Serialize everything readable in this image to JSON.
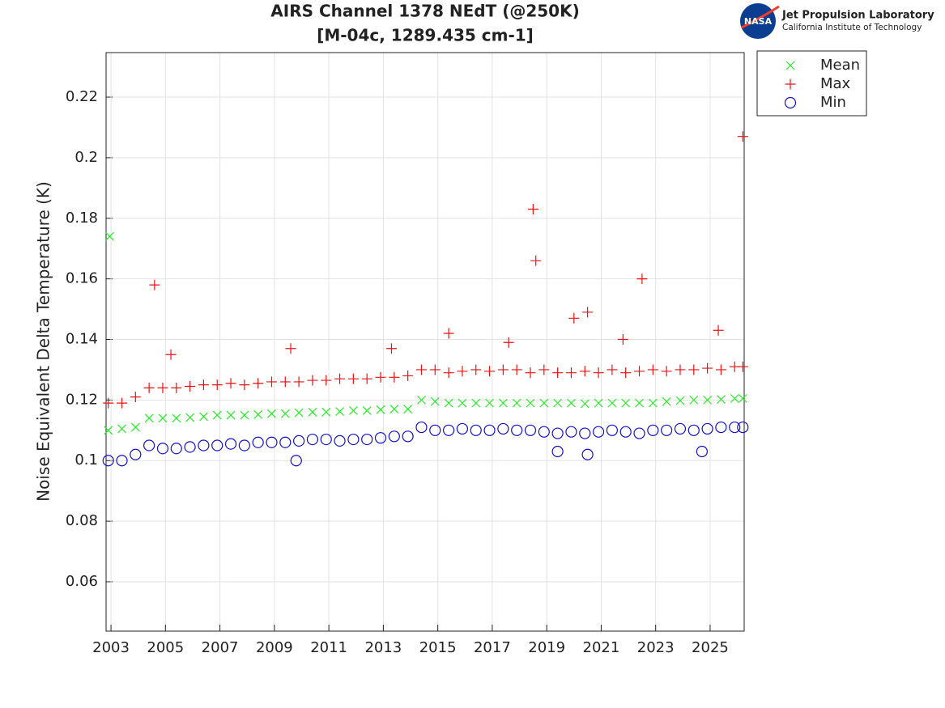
{
  "chart_data": {
    "type": "scatter",
    "title": "AIRS Channel 1378 NEdT (@250K)",
    "subtitle": "[M-04c, 1289.435 cm-1]",
    "logo": {
      "badge": "NASA",
      "name": "Jet Propulsion Laboratory",
      "institution": "California Institute of Technology"
    },
    "ylabel": "Noise Equivalent Delta Temperature (K)",
    "xlim": [
      2002.82,
      2026.25
    ],
    "ylim": [
      0.0437,
      0.2347
    ],
    "xticks": [
      2003,
      2005,
      2007,
      2009,
      2011,
      2013,
      2015,
      2017,
      2019,
      2021,
      2023,
      2025
    ],
    "yticks": [
      0.06,
      0.08,
      0.1,
      0.12,
      0.14,
      0.16,
      0.18,
      0.2,
      0.22
    ],
    "grid": true,
    "legend": "outside-northeast",
    "series": [
      {
        "name": "Mean",
        "color": "#22ee22",
        "marker": "x",
        "x": [
          2002.9,
          2003.4,
          2003.9,
          2004.4,
          2004.9,
          2005.4,
          2005.9,
          2006.4,
          2006.9,
          2007.4,
          2007.9,
          2008.4,
          2008.9,
          2009.4,
          2009.9,
          2010.4,
          2010.9,
          2011.4,
          2011.9,
          2012.4,
          2012.9,
          2013.4,
          2013.9,
          2014.4,
          2014.9,
          2015.4,
          2015.9,
          2016.4,
          2016.9,
          2017.4,
          2017.9,
          2018.4,
          2018.9,
          2019.4,
          2019.9,
          2020.4,
          2020.9,
          2021.4,
          2021.9,
          2022.4,
          2022.9,
          2023.4,
          2023.9,
          2024.4,
          2024.9,
          2025.4,
          2025.9,
          2026.2,
          2002.95
        ],
        "values": [
          0.11,
          0.1105,
          0.111,
          0.114,
          0.114,
          0.114,
          0.1142,
          0.1145,
          0.115,
          0.115,
          0.115,
          0.1152,
          0.1155,
          0.1155,
          0.1158,
          0.116,
          0.116,
          0.1162,
          0.1165,
          0.1165,
          0.1168,
          0.117,
          0.117,
          0.12,
          0.1195,
          0.119,
          0.119,
          0.119,
          0.119,
          0.119,
          0.119,
          0.119,
          0.119,
          0.119,
          0.119,
          0.1188,
          0.119,
          0.119,
          0.119,
          0.119,
          0.119,
          0.1195,
          0.1198,
          0.12,
          0.12,
          0.1202,
          0.1205,
          0.1205,
          0.174
        ]
      },
      {
        "name": "Max",
        "color": "#ee1111",
        "marker": "+",
        "x": [
          2002.9,
          2003.4,
          2003.9,
          2004.4,
          2004.9,
          2005.4,
          2005.9,
          2006.4,
          2006.9,
          2007.4,
          2007.9,
          2008.4,
          2008.9,
          2009.4,
          2009.9,
          2010.4,
          2010.9,
          2011.4,
          2011.9,
          2012.4,
          2012.9,
          2013.4,
          2013.9,
          2014.4,
          2014.9,
          2015.4,
          2015.9,
          2016.4,
          2016.9,
          2017.4,
          2017.9,
          2018.4,
          2018.9,
          2019.4,
          2019.9,
          2020.4,
          2020.9,
          2021.4,
          2021.9,
          2022.4,
          2022.9,
          2023.4,
          2023.9,
          2024.4,
          2024.9,
          2025.4,
          2025.9,
          2026.2,
          2004.6,
          2005.2,
          2009.6,
          2013.3,
          2015.4,
          2017.6,
          2018.5,
          2018.6,
          2020.0,
          2020.5,
          2021.8,
          2022.5,
          2025.3,
          2026.2
        ],
        "values": [
          0.119,
          0.119,
          0.121,
          0.124,
          0.124,
          0.124,
          0.1245,
          0.125,
          0.125,
          0.1255,
          0.125,
          0.1255,
          0.126,
          0.126,
          0.126,
          0.1265,
          0.1265,
          0.127,
          0.127,
          0.127,
          0.1275,
          0.1275,
          0.128,
          0.13,
          0.13,
          0.129,
          0.1295,
          0.13,
          0.1295,
          0.13,
          0.13,
          0.129,
          0.13,
          0.129,
          0.129,
          0.1295,
          0.129,
          0.13,
          0.129,
          0.1295,
          0.13,
          0.1295,
          0.13,
          0.13,
          0.1305,
          0.13,
          0.131,
          0.131,
          0.158,
          0.135,
          0.137,
          0.137,
          0.142,
          0.139,
          0.183,
          0.166,
          0.147,
          0.149,
          0.14,
          0.16,
          0.143,
          0.207
        ]
      },
      {
        "name": "Min",
        "color": "#1111cc",
        "marker": "o",
        "x": [
          2002.9,
          2003.4,
          2003.9,
          2004.4,
          2004.9,
          2005.4,
          2005.9,
          2006.4,
          2006.9,
          2007.4,
          2007.9,
          2008.4,
          2008.9,
          2009.4,
          2009.9,
          2010.4,
          2010.9,
          2011.4,
          2011.9,
          2012.4,
          2012.9,
          2013.4,
          2013.9,
          2014.4,
          2014.9,
          2015.4,
          2015.9,
          2016.4,
          2016.9,
          2017.4,
          2017.9,
          2018.4,
          2018.9,
          2019.4,
          2019.9,
          2020.4,
          2020.9,
          2021.4,
          2021.9,
          2022.4,
          2022.9,
          2023.4,
          2023.9,
          2024.4,
          2024.9,
          2025.4,
          2025.9,
          2026.2,
          2019.4,
          2020.5,
          2009.8,
          2024.7
        ],
        "values": [
          0.1,
          0.1,
          0.102,
          0.105,
          0.104,
          0.104,
          0.1045,
          0.105,
          0.105,
          0.1055,
          0.105,
          0.106,
          0.106,
          0.106,
          0.1065,
          0.107,
          0.107,
          0.1065,
          0.107,
          0.107,
          0.1075,
          0.108,
          0.108,
          0.111,
          0.11,
          0.11,
          0.1105,
          0.11,
          0.11,
          0.1105,
          0.11,
          0.11,
          0.1095,
          0.109,
          0.1095,
          0.109,
          0.1095,
          0.11,
          0.1095,
          0.109,
          0.11,
          0.11,
          0.1105,
          0.11,
          0.1105,
          0.111,
          0.111,
          0.111,
          0.103,
          0.102,
          0.1,
          0.103
        ]
      }
    ]
  }
}
